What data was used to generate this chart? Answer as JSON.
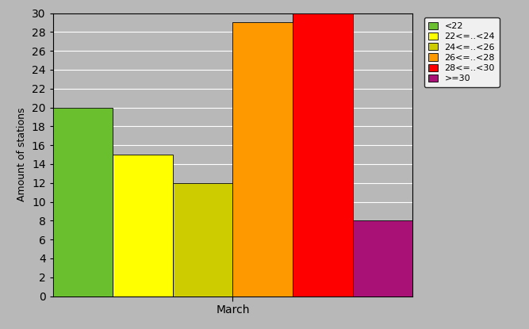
{
  "bars": [
    {
      "label": "<22",
      "value": 20,
      "color": "#6abf2e"
    },
    {
      "label": "22<=..<24",
      "value": 15,
      "color": "#ffff00"
    },
    {
      "label": "24<=..<26",
      "value": 12,
      "color": "#cccc00"
    },
    {
      "label": "26<=..<28",
      "value": 29,
      "color": "#ff9900"
    },
    {
      "label": "28<=..<30",
      "value": 30,
      "color": "#ff0000"
    },
    {
      "label": ">=30",
      "value": 8,
      "color": "#aa1177"
    }
  ],
  "ylabel": "Amount of stations",
  "xlabel": "March",
  "ylim": [
    0,
    30
  ],
  "yticks": [
    0,
    2,
    4,
    6,
    8,
    10,
    12,
    14,
    16,
    18,
    20,
    22,
    24,
    26,
    28,
    30
  ],
  "background_color": "#b8b8b8",
  "plot_bg_color": "#b8b8b8",
  "grid_color": "#ffffff"
}
